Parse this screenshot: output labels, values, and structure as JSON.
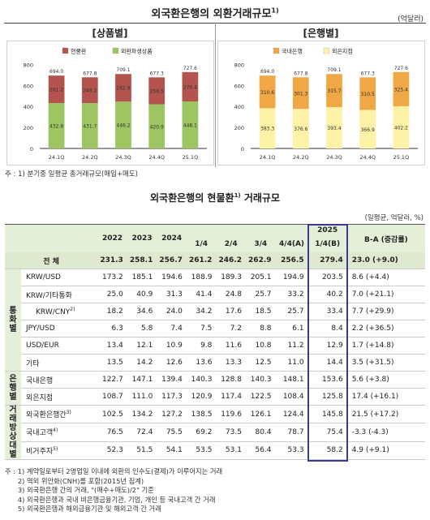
{
  "title_main": "외국환은행의 외환거래규모",
  "title_main_sup": "1)",
  "unit_top": "(억달러)",
  "chart_data": [
    {
      "type": "bar",
      "title": "[상품별]",
      "categories": [
        "24.1Q",
        "24.2Q",
        "24.3Q",
        "24.4Q",
        "25.1Q"
      ],
      "series": [
        {
          "name": "외환파생상품",
          "values": [
            432.8,
            431.7,
            446.2,
            420.9,
            448.1
          ],
          "color": "#9dc562"
        },
        {
          "name": "현물환",
          "values": [
            261.2,
            246.2,
            262.9,
            256.5,
            279.4
          ],
          "color": "#b4544f"
        }
      ],
      "totals": [
        694.0,
        677.8,
        709.1,
        677.3,
        727.6
      ],
      "yticks": [
        0,
        200,
        400,
        600,
        800
      ],
      "ylim": [
        0,
        850
      ],
      "stacked": true
    },
    {
      "type": "bar",
      "title": "[은행별]",
      "categories": [
        "24.1Q",
        "24.2Q",
        "24.3Q",
        "24.4Q",
        "25.1Q"
      ],
      "series": [
        {
          "name": "외은지점",
          "values": [
            383.3,
            376.6,
            393.4,
            366.9,
            402.2
          ],
          "color": "#fdf2a6"
        },
        {
          "name": "국내은행",
          "values": [
            310.6,
            301.3,
            315.7,
            310.5,
            325.4
          ],
          "color": "#f0a846"
        }
      ],
      "totals": [
        694.0,
        677.8,
        709.1,
        677.3,
        727.6
      ],
      "yticks": [
        0,
        200,
        400,
        600,
        800
      ],
      "ylim": [
        0,
        850
      ],
      "stacked": true
    }
  ],
  "legend_left": [
    "현물환",
    "외환파생상품"
  ],
  "legend_right": [
    "국내은행",
    "외은지점"
  ],
  "footnote_top": "주 : 1) 분기중 일평균 총거래규모(매입+매도)",
  "title_table": "외국환은행의 현물환",
  "title_table_sup": "1)",
  "title_table_suffix": " 거래규모",
  "unit_table": "(일평균, 억달러, %)",
  "headers": {
    "y2022": "2022",
    "y2023": "2023",
    "y2024": "2024",
    "q1": "1/4",
    "q2": "2/4",
    "q3": "3/4",
    "q4": "4/4(A)",
    "y2025a": "2025",
    "y2025b": "1/4(B)",
    "ba": "B-A (증감률)"
  },
  "total_row": {
    "label": "전 체",
    "vals": [
      "231.3",
      "258.1",
      "256.7",
      "261.2",
      "246.2",
      "262.9",
      "256.5",
      "279.4"
    ],
    "ba": "23.0  (+9.0)"
  },
  "cat_currency": "통\n화\n별",
  "cat_bank": "은\n행\n별",
  "cat_party_a": "거\n래\n방",
  "cat_party_b": "상\n대\n별",
  "rows_currency": [
    {
      "label": "KRW/USD",
      "sup": "",
      "vals": [
        "173.2",
        "185.1",
        "194.6",
        "188.9",
        "189.3",
        "205.1",
        "194.9",
        "203.5"
      ],
      "ba": "8.6  (+4.4)"
    },
    {
      "label": "KRW/기타통화",
      "sup": "",
      "vals": [
        "25.0",
        "40.9",
        "31.3",
        "41.4",
        "24.8",
        "25.7",
        "33.2",
        "40.2"
      ],
      "ba": "7.0  (+21.1)"
    },
    {
      "label": "KRW/CNY",
      "sup": "2)",
      "vals": [
        "18.2",
        "34.6",
        "24.0",
        "34.2",
        "17.6",
        "18.5",
        "25.7",
        "33.4"
      ],
      "ba": "7.7  (+29.9)"
    },
    {
      "label": "JPY/USD",
      "sup": "",
      "vals": [
        "6.3",
        "5.8",
        "7.4",
        "7.5",
        "7.2",
        "8.8",
        "6.1",
        "8.4"
      ],
      "ba": "2.2  (+36.5)"
    },
    {
      "label": "USD/EUR",
      "sup": "",
      "vals": [
        "13.4",
        "12.1",
        "10.9",
        "9.8",
        "11.6",
        "10.8",
        "11.2",
        "12.9"
      ],
      "ba": "1.7  (+14.8)"
    },
    {
      "label": "기타",
      "sup": "",
      "vals": [
        "13.5",
        "14.2",
        "12.6",
        "13.6",
        "13.3",
        "12.5",
        "11.0",
        "14.4"
      ],
      "ba": "3.5  (+31.5)"
    }
  ],
  "rows_bank": [
    {
      "label": "국내은행",
      "sup": "",
      "vals": [
        "122.7",
        "147.1",
        "139.4",
        "140.3",
        "128.8",
        "140.3",
        "148.1",
        "153.6"
      ],
      "ba": "5.6  (+3.8)"
    },
    {
      "label": "외은지점",
      "sup": "",
      "vals": [
        "108.7",
        "111.0",
        "117.3",
        "120.9",
        "117.4",
        "122.5",
        "108.4",
        "125.8"
      ],
      "ba": "17.4  (+16.1)"
    }
  ],
  "rows_party": [
    {
      "label": "외국환은행간",
      "sup": "3)",
      "vals": [
        "102.5",
        "134.2",
        "127.2",
        "138.5",
        "119.6",
        "126.1",
        "124.4",
        "145.8"
      ],
      "ba": "21.5  (+17.2)"
    },
    {
      "label": "국내고객",
      "sup": "4)",
      "vals": [
        "76.5",
        "72.4",
        "75.5",
        "69.2",
        "73.5",
        "80.4",
        "78.7",
        "75.4"
      ],
      "ba": "-3.3  (-4.3)"
    },
    {
      "label": "비거주자",
      "sup": "5)",
      "vals": [
        "52.3",
        "51.5",
        "54.1",
        "53.5",
        "53.1",
        "56.4",
        "53.3",
        "58.2"
      ],
      "ba": "4.9  (+9.1)"
    }
  ],
  "notes": [
    "주 : 1) 계약일로부터 2영업일 이내에 외환의 인수도(결제)가 이루어지는 거래",
    "      2) 역외 위안화(CNH)를 포함(2015년 집계)",
    "      3) 외국환은행 간의 거래, \"(매수+매도)/2\" 기준",
    "      4) 외국환은행과 국내 비은행금융기관, 기업, 개인 등 국내고객 간 거래",
    "      5) 외국환은행과 해외금융기관 및 해외고객 간 거래"
  ]
}
